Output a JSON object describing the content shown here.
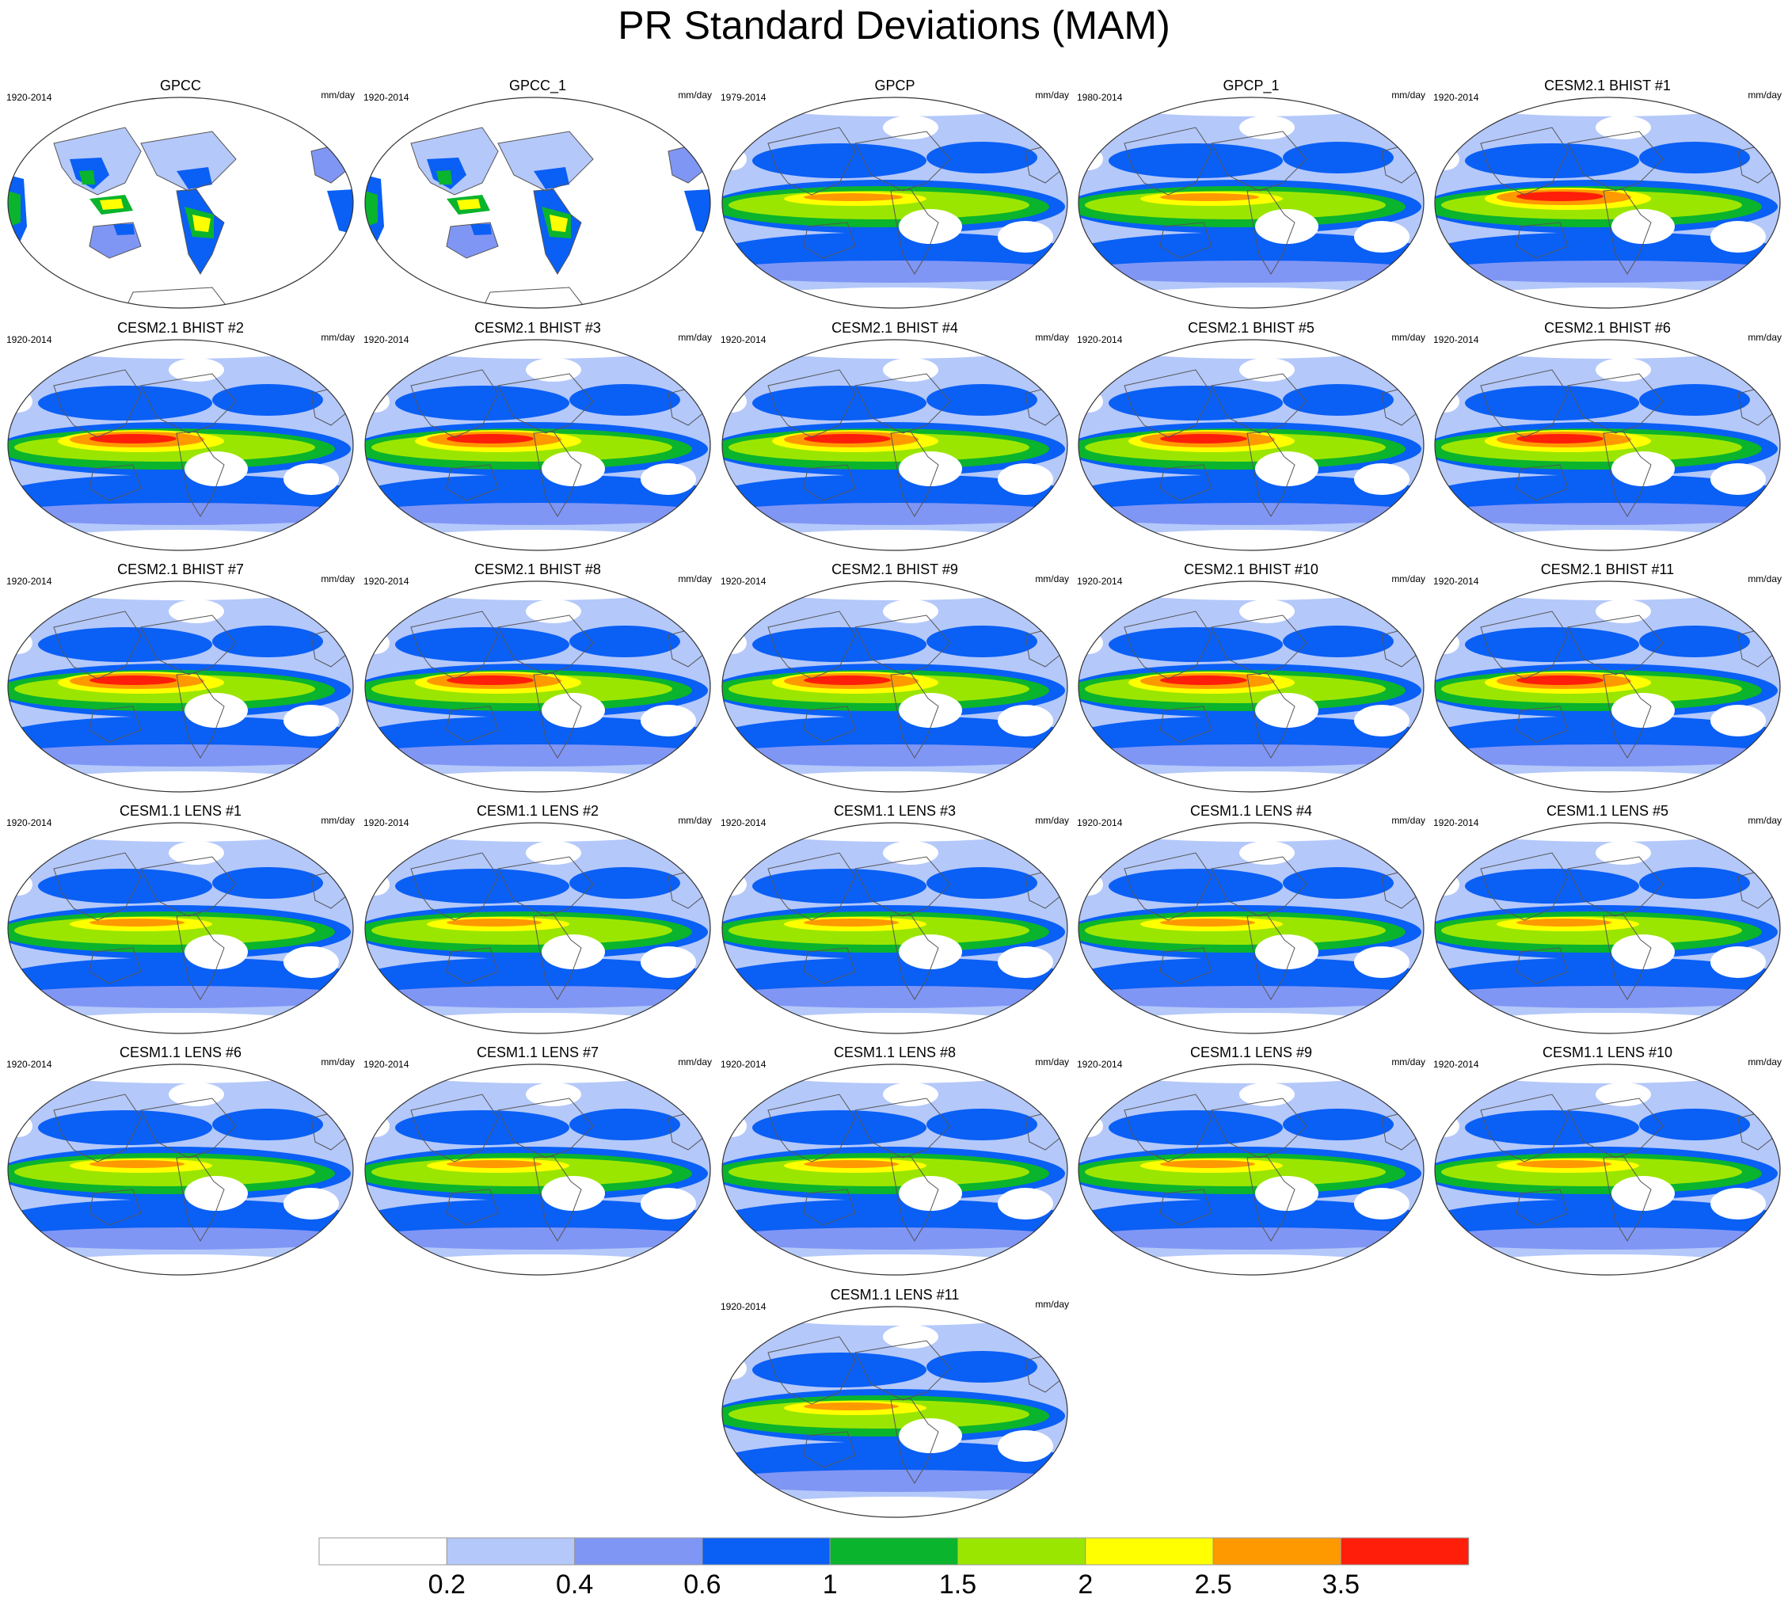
{
  "title": "PR Standard Deviations (MAM)",
  "units": "mm/day",
  "colorbar": {
    "labels": [
      "0.2",
      "0.4",
      "0.6",
      "1",
      "1.5",
      "2",
      "2.5",
      "3.5"
    ],
    "colors": [
      "#ffffff",
      "#b4c8fa",
      "#8096f5",
      "#0a5ff5",
      "#0ab42d",
      "#9be600",
      "#ffff00",
      "#ff9900",
      "#ff1e0a"
    ]
  },
  "panels": [
    {
      "title": "GPCC",
      "period": "1920-2014",
      "kind": "land"
    },
    {
      "title": "GPCC_1",
      "period": "1920-2014",
      "kind": "land"
    },
    {
      "title": "GPCP",
      "period": "1979-2014",
      "kind": "obs"
    },
    {
      "title": "GPCP_1",
      "period": "1980-2014",
      "kind": "obs"
    },
    {
      "title": "CESM2.1 BHIST #1",
      "period": "1920-2014",
      "kind": "cesm2"
    },
    {
      "title": "CESM2.1 BHIST #2",
      "period": "1920-2014",
      "kind": "cesm2"
    },
    {
      "title": "CESM2.1 BHIST #3",
      "period": "1920-2014",
      "kind": "cesm2"
    },
    {
      "title": "CESM2.1 BHIST #4",
      "period": "1920-2014",
      "kind": "cesm2"
    },
    {
      "title": "CESM2.1 BHIST #5",
      "period": "1920-2014",
      "kind": "cesm2"
    },
    {
      "title": "CESM2.1 BHIST #6",
      "period": "1920-2014",
      "kind": "cesm2"
    },
    {
      "title": "CESM2.1 BHIST #7",
      "period": "1920-2014",
      "kind": "cesm2"
    },
    {
      "title": "CESM2.1 BHIST #8",
      "period": "1920-2014",
      "kind": "cesm2"
    },
    {
      "title": "CESM2.1 BHIST #9",
      "period": "1920-2014",
      "kind": "cesm2"
    },
    {
      "title": "CESM2.1 BHIST #10",
      "period": "1920-2014",
      "kind": "cesm2"
    },
    {
      "title": "CESM2.1 BHIST #11",
      "period": "1920-2014",
      "kind": "cesm2"
    },
    {
      "title": "CESM1.1 LENS #1",
      "period": "1920-2014",
      "kind": "cesm1"
    },
    {
      "title": "CESM1.1 LENS #2",
      "period": "1920-2014",
      "kind": "cesm1"
    },
    {
      "title": "CESM1.1 LENS #3",
      "period": "1920-2014",
      "kind": "cesm1"
    },
    {
      "title": "CESM1.1 LENS #4",
      "period": "1920-2014",
      "kind": "cesm1"
    },
    {
      "title": "CESM1.1 LENS #5",
      "period": "1920-2014",
      "kind": "cesm1"
    },
    {
      "title": "CESM1.1 LENS #6",
      "period": "1920-2014",
      "kind": "cesm1"
    },
    {
      "title": "CESM1.1 LENS #7",
      "period": "1920-2014",
      "kind": "cesm1"
    },
    {
      "title": "CESM1.1 LENS #8",
      "period": "1920-2014",
      "kind": "cesm1"
    },
    {
      "title": "CESM1.1 LENS #9",
      "period": "1920-2014",
      "kind": "cesm1"
    },
    {
      "title": "CESM1.1 LENS #10",
      "period": "1920-2014",
      "kind": "cesm1"
    },
    {
      "title": "CESM1.1 LENS #11",
      "period": "1920-2014",
      "kind": "cesm1"
    }
  ]
}
